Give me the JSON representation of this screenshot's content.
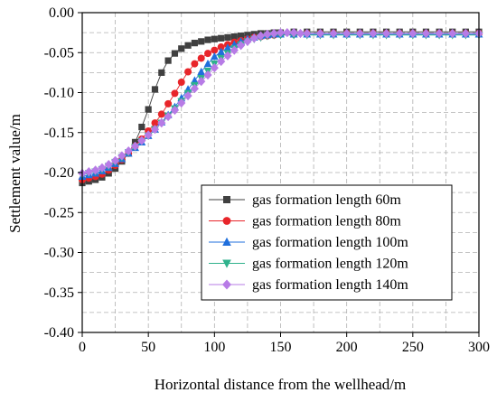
{
  "chart_data": {
    "type": "line",
    "title": "",
    "xlabel": "Horizontal distance from the wellhead/m",
    "ylabel": "Settlement value/m",
    "xlim": [
      0,
      300
    ],
    "ylim": [
      -0.4,
      0.0
    ],
    "x_ticks": [
      0,
      50,
      100,
      150,
      200,
      250,
      300
    ],
    "y_ticks": [
      0.0,
      -0.05,
      -0.1,
      -0.15,
      -0.2,
      -0.25,
      -0.3,
      -0.35,
      -0.4
    ],
    "x_tick_labels": [
      "0",
      "50",
      "100",
      "150",
      "200",
      "250",
      "300"
    ],
    "y_tick_labels": [
      "0.00",
      "-0.05",
      "-0.10",
      "-0.15",
      "-0.20",
      "-0.25",
      "-0.30",
      "-0.35",
      "-0.40"
    ],
    "grid": true,
    "legend_position": "bottom-right",
    "series": [
      {
        "name": "gas formation length 60m",
        "color": "#404040",
        "marker": "square",
        "x": [
          0,
          5,
          10,
          15,
          20,
          25,
          30,
          35,
          40,
          45,
          50,
          55,
          60,
          65,
          70,
          75,
          80,
          85,
          90,
          95,
          100,
          105,
          110,
          115,
          120,
          125,
          130,
          135,
          140,
          145,
          150,
          160,
          170,
          180,
          190,
          200,
          210,
          220,
          230,
          240,
          250,
          260,
          270,
          280,
          290,
          300
        ],
        "y": [
          -0.213,
          -0.211,
          -0.209,
          -0.206,
          -0.201,
          -0.195,
          -0.186,
          -0.176,
          -0.162,
          -0.143,
          -0.121,
          -0.096,
          -0.075,
          -0.06,
          -0.051,
          -0.045,
          -0.041,
          -0.038,
          -0.036,
          -0.034,
          -0.033,
          -0.032,
          -0.031,
          -0.03,
          -0.029,
          -0.028,
          -0.027,
          -0.026,
          -0.026,
          -0.025,
          -0.025,
          -0.024,
          -0.024,
          -0.024,
          -0.024,
          -0.024,
          -0.024,
          -0.024,
          -0.024,
          -0.024,
          -0.024,
          -0.024,
          -0.024,
          -0.024,
          -0.024,
          -0.024
        ]
      },
      {
        "name": "gas formation length 80m",
        "color": "#e8252a",
        "marker": "circle",
        "x": [
          0,
          5,
          10,
          15,
          20,
          25,
          30,
          35,
          40,
          45,
          50,
          55,
          60,
          65,
          70,
          75,
          80,
          85,
          90,
          95,
          100,
          105,
          110,
          115,
          120,
          125,
          130,
          135,
          140,
          145,
          150,
          160,
          170,
          180,
          190,
          200,
          210,
          220,
          230,
          240,
          250,
          260,
          270,
          280,
          290,
          300
        ],
        "y": [
          -0.209,
          -0.207,
          -0.205,
          -0.202,
          -0.197,
          -0.191,
          -0.184,
          -0.176,
          -0.167,
          -0.158,
          -0.148,
          -0.138,
          -0.127,
          -0.114,
          -0.101,
          -0.087,
          -0.074,
          -0.064,
          -0.057,
          -0.051,
          -0.047,
          -0.043,
          -0.04,
          -0.037,
          -0.035,
          -0.033,
          -0.031,
          -0.03,
          -0.029,
          -0.028,
          -0.027,
          -0.027,
          -0.026,
          -0.026,
          -0.026,
          -0.026,
          -0.026,
          -0.026,
          -0.026,
          -0.026,
          -0.026,
          -0.026,
          -0.026,
          -0.026,
          -0.026,
          -0.026
        ]
      },
      {
        "name": "gas formation length 100m",
        "color": "#1f6fdc",
        "marker": "triangle-up",
        "x": [
          0,
          5,
          10,
          15,
          20,
          25,
          30,
          35,
          40,
          45,
          50,
          55,
          60,
          65,
          70,
          75,
          80,
          85,
          90,
          95,
          100,
          105,
          110,
          115,
          120,
          125,
          130,
          135,
          140,
          145,
          150,
          160,
          170,
          180,
          190,
          200,
          210,
          220,
          230,
          240,
          250,
          260,
          270,
          280,
          290,
          300
        ],
        "y": [
          -0.205,
          -0.203,
          -0.201,
          -0.198,
          -0.194,
          -0.189,
          -0.183,
          -0.176,
          -0.169,
          -0.162,
          -0.154,
          -0.146,
          -0.137,
          -0.128,
          -0.118,
          -0.107,
          -0.096,
          -0.085,
          -0.074,
          -0.064,
          -0.055,
          -0.049,
          -0.044,
          -0.04,
          -0.036,
          -0.033,
          -0.031,
          -0.029,
          -0.028,
          -0.027,
          -0.027,
          -0.027,
          -0.027,
          -0.027,
          -0.027,
          -0.027,
          -0.027,
          -0.027,
          -0.027,
          -0.027,
          -0.027,
          -0.027,
          -0.027,
          -0.027,
          -0.027,
          -0.027
        ]
      },
      {
        "name": "gas formation length 120m",
        "color": "#2fb28c",
        "marker": "triangle-down",
        "x": [
          0,
          5,
          10,
          15,
          20,
          25,
          30,
          35,
          40,
          45,
          50,
          55,
          60,
          65,
          70,
          75,
          80,
          85,
          90,
          95,
          100,
          105,
          110,
          115,
          120,
          125,
          130,
          135,
          140,
          145,
          150,
          160,
          170,
          180,
          190,
          200,
          210,
          220,
          230,
          240,
          250,
          260,
          270,
          280,
          290,
          300
        ],
        "y": [
          -0.203,
          -0.201,
          -0.199,
          -0.196,
          -0.192,
          -0.187,
          -0.181,
          -0.175,
          -0.168,
          -0.161,
          -0.154,
          -0.146,
          -0.138,
          -0.129,
          -0.12,
          -0.111,
          -0.101,
          -0.091,
          -0.082,
          -0.073,
          -0.064,
          -0.057,
          -0.051,
          -0.045,
          -0.04,
          -0.036,
          -0.033,
          -0.031,
          -0.029,
          -0.028,
          -0.028,
          -0.028,
          -0.028,
          -0.028,
          -0.028,
          -0.028,
          -0.028,
          -0.028,
          -0.028,
          -0.028,
          -0.028,
          -0.028,
          -0.028,
          -0.028,
          -0.028,
          -0.028
        ]
      },
      {
        "name": "gas formation length 140m",
        "color": "#b77be6",
        "marker": "diamond",
        "x": [
          0,
          5,
          10,
          15,
          20,
          25,
          30,
          35,
          40,
          45,
          50,
          55,
          60,
          65,
          70,
          75,
          80,
          85,
          90,
          95,
          100,
          105,
          110,
          115,
          120,
          125,
          130,
          135,
          140,
          145,
          150,
          155,
          160,
          165,
          170,
          180,
          190,
          200,
          210,
          220,
          230,
          240,
          250,
          260,
          270,
          280,
          290,
          300
        ],
        "y": [
          -0.201,
          -0.199,
          -0.197,
          -0.194,
          -0.19,
          -0.185,
          -0.179,
          -0.173,
          -0.167,
          -0.16,
          -0.153,
          -0.146,
          -0.138,
          -0.13,
          -0.122,
          -0.113,
          -0.104,
          -0.095,
          -0.086,
          -0.078,
          -0.069,
          -0.061,
          -0.054,
          -0.047,
          -0.041,
          -0.036,
          -0.032,
          -0.029,
          -0.027,
          -0.026,
          -0.025,
          -0.025,
          -0.025,
          -0.026,
          -0.026,
          -0.026,
          -0.026,
          -0.026,
          -0.026,
          -0.026,
          -0.026,
          -0.026,
          -0.026,
          -0.026,
          -0.026,
          -0.026,
          -0.026,
          -0.026
        ]
      }
    ]
  }
}
